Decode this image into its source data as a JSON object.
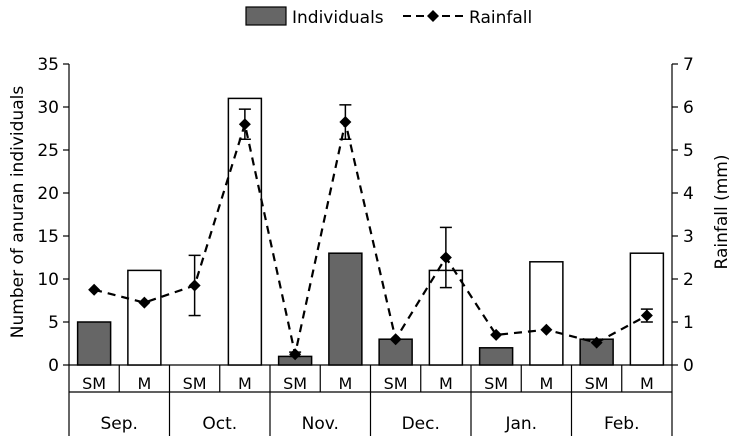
{
  "chart_data": {
    "type": "bar",
    "legend_placement": "top-center",
    "grid": false,
    "legend": {
      "bar_label": "Individuals",
      "line_label": "Rainfall"
    },
    "ylabel_left": "Number of anuran individuals",
    "ylabel_right": "Rainfall (mm)",
    "ylim_left": [
      0,
      35
    ],
    "ylim_right": [
      0,
      7
    ],
    "yticks_left": [
      "0",
      "5",
      "10",
      "15",
      "20",
      "25",
      "30",
      "35"
    ],
    "yticks_right": [
      "0",
      "1",
      "2",
      "3",
      "4",
      "5",
      "6",
      "7"
    ],
    "months": [
      "Sep.",
      "Oct.",
      "Nov.",
      "Dec.",
      "Jan.",
      "Feb."
    ],
    "categories": [
      "SM",
      "M",
      "SM",
      "M",
      "SM",
      "M",
      "SM",
      "M",
      "SM",
      "M",
      "SM",
      "M"
    ],
    "bar_fill": [
      "gray",
      "white",
      "gray",
      "white",
      "gray",
      "gray",
      "gray",
      "white",
      "gray",
      "white",
      "gray",
      "white"
    ],
    "series": [
      {
        "name": "Individuals",
        "kind": "bar",
        "values": [
          5,
          11,
          0,
          31,
          1,
          13,
          3,
          11,
          2,
          12,
          3,
          13
        ]
      },
      {
        "name": "Rainfall",
        "kind": "line",
        "values": [
          1.75,
          1.45,
          1.85,
          5.6,
          0.25,
          5.65,
          0.6,
          2.5,
          0.7,
          0.82,
          0.52,
          1.15
        ],
        "error": [
          0,
          0,
          0.7,
          0.35,
          0.05,
          0.4,
          0,
          0.7,
          0,
          0,
          0,
          0.15
        ]
      }
    ],
    "colors": {
      "bar_gray": "#666666",
      "bar_white": "#ffffff",
      "line": "#000000"
    }
  }
}
